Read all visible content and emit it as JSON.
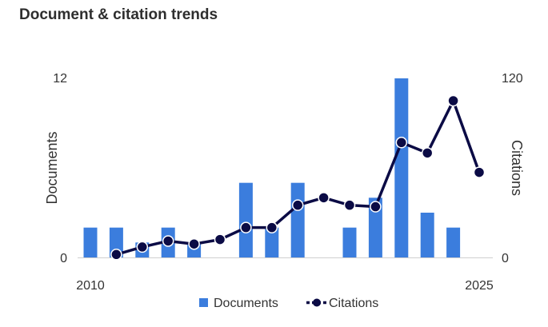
{
  "title": "Document & citation trends",
  "chart_data": {
    "type": "bar",
    "title": "Document & citation trends",
    "x": [
      2010,
      2011,
      2012,
      2013,
      2014,
      2015,
      2016,
      2017,
      2018,
      2019,
      2020,
      2021,
      2022,
      2023,
      2024,
      2025
    ],
    "x_tick_labels": [
      "2010",
      "2025"
    ],
    "series": [
      {
        "name": "Documents",
        "type": "bar",
        "axis": "left",
        "color": "#3b7ddd",
        "values": [
          2,
          2,
          1,
          2,
          1,
          0,
          5,
          2,
          5,
          0,
          2,
          4,
          12,
          3,
          2,
          null
        ]
      },
      {
        "name": "Citations",
        "type": "line",
        "axis": "right",
        "color": "#0b0b45",
        "values": [
          null,
          2,
          7,
          11,
          9,
          12,
          20,
          20,
          35,
          40,
          35,
          34,
          77,
          70,
          105,
          57
        ]
      }
    ],
    "y_left": {
      "label": "Documents",
      "min": 0,
      "max": 12,
      "ticks": [
        "0",
        "12"
      ]
    },
    "y_right": {
      "label": "Citations",
      "min": 0,
      "max": 120,
      "ticks": [
        "0",
        "120"
      ]
    },
    "legend": {
      "position": "bottom",
      "items": [
        "Documents",
        "Citations"
      ]
    },
    "grid": false
  }
}
